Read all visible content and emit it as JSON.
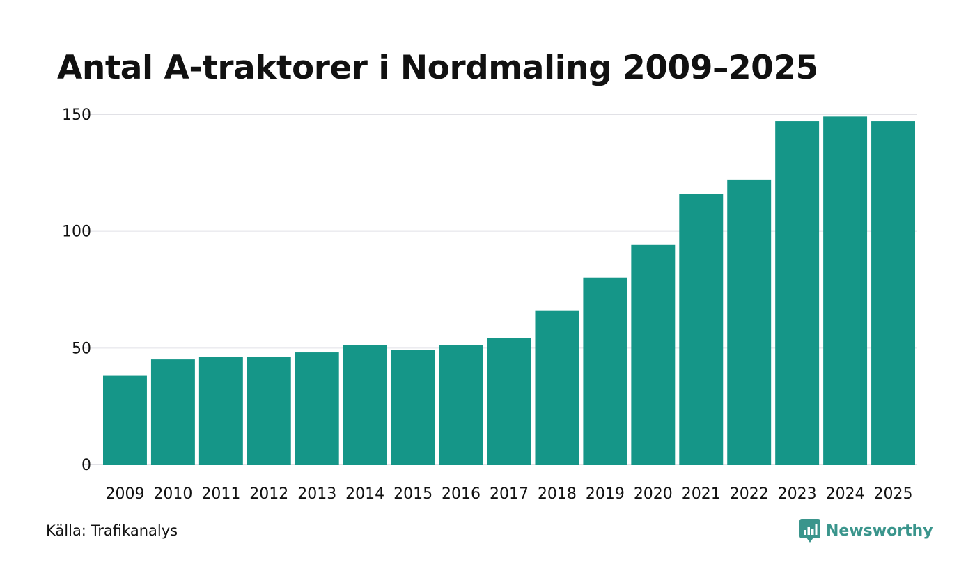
{
  "title": "Antal A-traktorer i Nordmaling 2009–2025",
  "source": "Källa: Trafikanalys",
  "brand": {
    "name": "Newsworthy",
    "icon": "newsworthy-logo-icon",
    "color": "#3a958c"
  },
  "colors": {
    "bar": "#159688",
    "grid": "#e1e1e6",
    "text": "#111111"
  },
  "chart_data": {
    "type": "bar",
    "title": "Antal A-traktorer i Nordmaling 2009–2025",
    "xlabel": "",
    "ylabel": "",
    "categories": [
      "2009",
      "2010",
      "2011",
      "2012",
      "2013",
      "2014",
      "2015",
      "2016",
      "2017",
      "2018",
      "2019",
      "2020",
      "2021",
      "2022",
      "2023",
      "2024",
      "2025"
    ],
    "values": [
      38,
      45,
      46,
      46,
      48,
      51,
      49,
      51,
      54,
      66,
      80,
      94,
      116,
      122,
      147,
      149,
      147
    ],
    "ylim": [
      0,
      150
    ],
    "yticks": [
      0,
      50,
      100,
      150
    ],
    "grid": true,
    "legend": "none"
  }
}
